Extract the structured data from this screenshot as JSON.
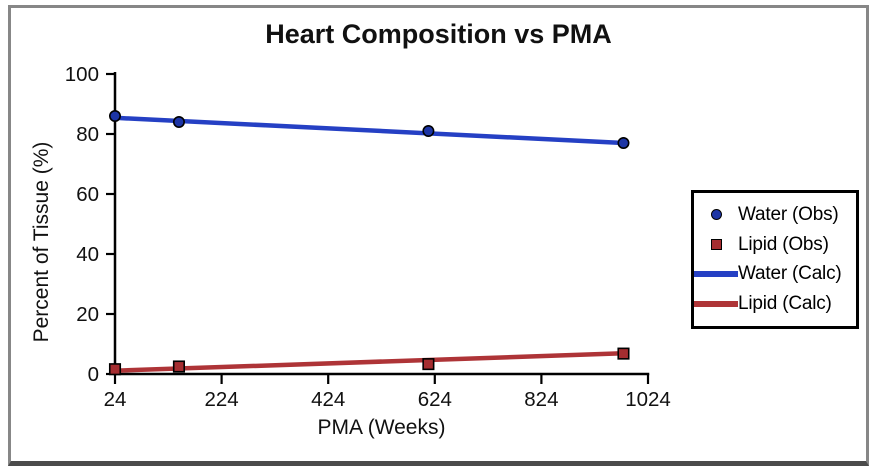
{
  "window": {
    "background": "#ffffff",
    "frame_color": "#878787",
    "frame_bottom_color": "#4b4b4b"
  },
  "chart_data": {
    "type": "line",
    "title": "Heart Composition vs PMA",
    "xlabel": "PMA (Weeks)",
    "ylabel": "Percent of Tissue (%)",
    "xlim": [
      24,
      1024
    ],
    "ylim": [
      0,
      100
    ],
    "x_ticks": [
      "24",
      "224",
      "424",
      "624",
      "824",
      "1024"
    ],
    "x_tick_values": [
      24,
      224,
      424,
      624,
      824,
      1024
    ],
    "y_ticks": [
      "0",
      "20",
      "40",
      "60",
      "80",
      "100"
    ],
    "y_tick_values": [
      0,
      20,
      40,
      60,
      80,
      100
    ],
    "grid": false,
    "axis_color": "#000000",
    "legend_position": "right-outside",
    "series": [
      {
        "name": "Water (Obs)",
        "kind": "scatter",
        "marker": "circle",
        "fill": "#1d35a5",
        "edge": "#000000",
        "x": [
          24,
          144,
          612,
          978
        ],
        "y": [
          86,
          84,
          81,
          77
        ]
      },
      {
        "name": "Lipid (Obs)",
        "kind": "scatter",
        "marker": "square",
        "fill": "#a52d30",
        "edge": "#000000",
        "x": [
          24,
          144,
          612,
          978
        ],
        "y": [
          1.6,
          2.5,
          3.3,
          6.8
        ]
      },
      {
        "name": "Water (Calc)",
        "kind": "line",
        "color": "#2540c4",
        "x": [
          24,
          978
        ],
        "y": [
          85.4,
          77.0
        ]
      },
      {
        "name": "Lipid (Calc)",
        "kind": "line",
        "color": "#ae3437",
        "x": [
          24,
          978
        ],
        "y": [
          1.1,
          6.9
        ]
      }
    ]
  }
}
